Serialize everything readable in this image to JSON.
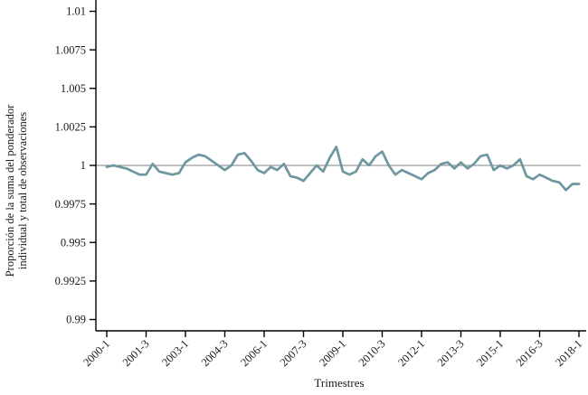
{
  "chart_data": {
    "type": "line",
    "title": "",
    "xlabel": "Trimestres",
    "ylabel_line1": "Proporción de la suma del ponderador",
    "ylabel_line2": "individual y total de observaciones",
    "x_range": {
      "start": "2000-1",
      "end": "2018-1",
      "frequency": "quarterly"
    },
    "x_tick_labels": [
      "2000-1",
      "2001-3",
      "2003-1",
      "2004-3",
      "2006-1",
      "2007-3",
      "2009-1",
      "2010-3",
      "2012-1",
      "2013-3",
      "2015-1",
      "2016-3",
      "2018-1"
    ],
    "x_tick_every_n_quarters": 6,
    "y_ticks": [
      0.99,
      0.9925,
      0.995,
      0.9975,
      1,
      1.0025,
      1.005,
      1.0075,
      1.01
    ],
    "y_tick_labels": [
      "0.99",
      "0.9925",
      "0.995",
      "0.9975",
      "1",
      "1.0025",
      "1.005",
      "1.0075",
      "1.01"
    ],
    "ylim": [
      0.99,
      1.01
    ],
    "reference_line_y": 1,
    "grid": false,
    "legend": "none",
    "values": [
      0.9999,
      1.0,
      0.9999,
      0.9998,
      0.9996,
      0.9994,
      0.9994,
      1.0001,
      0.9996,
      0.9995,
      0.9994,
      0.9995,
      1.0002,
      1.0005,
      1.0007,
      1.0006,
      1.0003,
      1.0,
      0.9997,
      1.0,
      1.0007,
      1.0008,
      1.0003,
      0.9997,
      0.9995,
      0.9999,
      0.9997,
      1.0001,
      0.9993,
      0.9992,
      0.999,
      0.9995,
      1.0,
      0.9996,
      1.0005,
      1.0012,
      0.9996,
      0.9994,
      0.9996,
      1.0004,
      1.0,
      1.0006,
      1.0009,
      1.0,
      0.9994,
      0.9997,
      0.9995,
      0.9993,
      0.9991,
      0.9995,
      0.9997,
      1.0001,
      1.0002,
      0.9998,
      1.0002,
      0.9998,
      1.0001,
      1.0006,
      1.0007,
      0.9997,
      1.0,
      0.9998,
      1.0,
      1.0004,
      0.9993,
      0.9991,
      0.9994,
      0.9992,
      0.999,
      0.9989,
      0.9984,
      0.9988,
      0.9988
    ],
    "line_color": "#6e97a0",
    "reference_line_color": "#808080",
    "axis_color": "#000000"
  }
}
